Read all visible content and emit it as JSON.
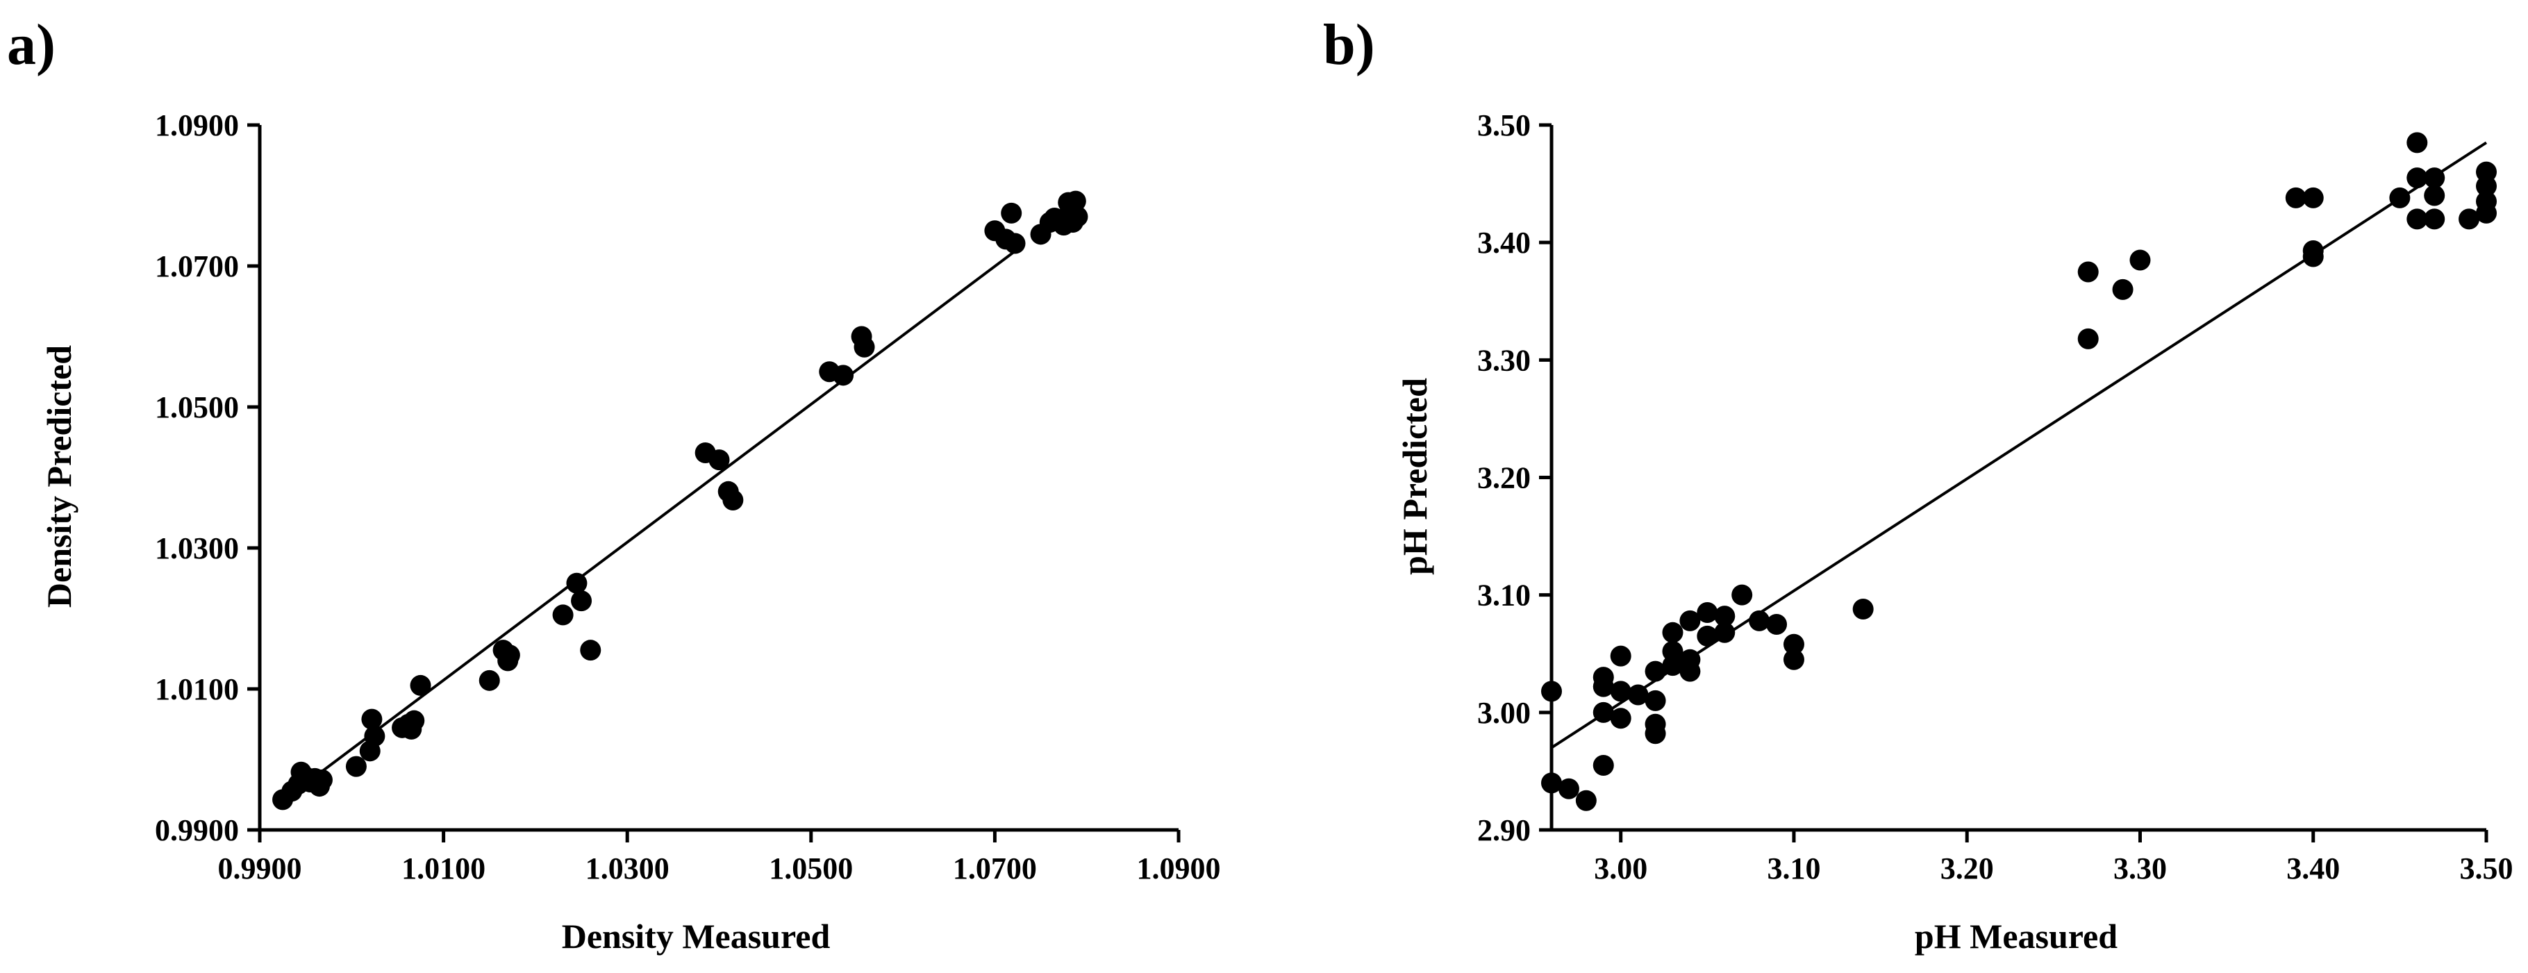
{
  "chart_data": [
    {
      "type": "scatter",
      "panel_label": "a)",
      "title": "",
      "xlabel": "Density Measured",
      "ylabel": "Density Predicted",
      "xlim": [
        0.99,
        1.09
      ],
      "ylim": [
        0.99,
        1.09
      ],
      "xticks": [
        "0.9900",
        "1.0100",
        "1.0300",
        "1.0500",
        "1.0700",
        "1.0900"
      ],
      "yticks": [
        "0.9900",
        "1.0100",
        "1.0300",
        "1.0500",
        "1.0700",
        "1.0900"
      ],
      "grid": false,
      "fit_line": {
        "x": [
          0.9935,
          1.0725
        ],
        "y": [
          0.9951,
          1.0724
        ]
      },
      "x": [
        0.9925,
        0.9935,
        0.9942,
        0.9945,
        0.995,
        0.9955,
        0.996,
        0.9965,
        0.9968,
        1.0005,
        1.002,
        1.0022,
        1.0025,
        1.0055,
        1.0062,
        1.0065,
        1.0068,
        1.0075,
        1.015,
        1.0165,
        1.017,
        1.0172,
        1.023,
        1.0245,
        1.025,
        1.026,
        1.0385,
        1.04,
        1.041,
        1.0415,
        1.052,
        1.0535,
        1.0555,
        1.0558,
        1.07,
        1.0712,
        1.0718,
        1.0722,
        1.075,
        1.076,
        1.0765,
        1.0775,
        1.078,
        1.0782,
        1.0785,
        1.0788,
        1.079
      ],
      "y": [
        0.9943,
        0.9955,
        0.9965,
        0.9982,
        0.9975,
        0.9968,
        0.9973,
        0.9962,
        0.9971,
        0.999,
        1.0012,
        1.0057,
        1.0033,
        1.0045,
        1.005,
        1.0043,
        1.0055,
        1.0105,
        1.0112,
        1.0155,
        1.014,
        1.0148,
        1.0205,
        1.025,
        1.0225,
        1.0155,
        1.0435,
        1.0425,
        1.038,
        1.0368,
        1.055,
        1.0545,
        1.06,
        1.0585,
        1.075,
        1.0738,
        1.0775,
        1.0732,
        1.0745,
        1.0762,
        1.0768,
        1.0758,
        1.079,
        1.0778,
        1.0762,
        1.0792,
        1.077
      ]
    },
    {
      "type": "scatter",
      "panel_label": "b)",
      "title": "",
      "xlabel": "pH Measured",
      "ylabel": "pH Predicted",
      "xlim": [
        2.96,
        3.5
      ],
      "ylim": [
        2.9,
        3.5
      ],
      "xticks": [
        "3.00",
        "3.10",
        "3.20",
        "3.30",
        "3.40",
        "3.50"
      ],
      "yticks": [
        "2.90",
        "3.00",
        "3.10",
        "3.20",
        "3.30",
        "3.40",
        "3.50"
      ],
      "grid": false,
      "fit_line": {
        "x": [
          2.96,
          3.5
        ],
        "y": [
          2.97,
          3.485
        ]
      },
      "x": [
        2.96,
        2.96,
        2.97,
        2.98,
        2.99,
        2.99,
        2.99,
        2.99,
        3.0,
        3.0,
        3.0,
        3.01,
        3.02,
        3.02,
        3.02,
        3.02,
        3.03,
        3.03,
        3.03,
        3.04,
        3.04,
        3.04,
        3.05,
        3.05,
        3.06,
        3.06,
        3.07,
        3.08,
        3.09,
        3.1,
        3.1,
        3.14,
        3.27,
        3.27,
        3.29,
        3.3,
        3.39,
        3.4,
        3.4,
        3.4,
        3.45,
        3.46,
        3.46,
        3.46,
        3.47,
        3.47,
        3.47,
        3.49,
        3.5,
        3.5,
        3.5,
        3.5
      ],
      "y": [
        3.018,
        2.94,
        2.935,
        2.925,
        3.03,
        3.022,
        3.0,
        2.955,
        3.048,
        3.018,
        2.995,
        3.015,
        3.035,
        3.01,
        2.99,
        2.982,
        3.068,
        3.052,
        3.04,
        3.078,
        3.045,
        3.035,
        3.085,
        3.065,
        3.082,
        3.068,
        3.1,
        3.078,
        3.075,
        3.058,
        3.045,
        3.088,
        3.375,
        3.318,
        3.36,
        3.385,
        3.438,
        3.438,
        3.393,
        3.388,
        3.438,
        3.485,
        3.455,
        3.42,
        3.455,
        3.44,
        3.42,
        3.42,
        3.46,
        3.448,
        3.435,
        3.425
      ]
    }
  ]
}
